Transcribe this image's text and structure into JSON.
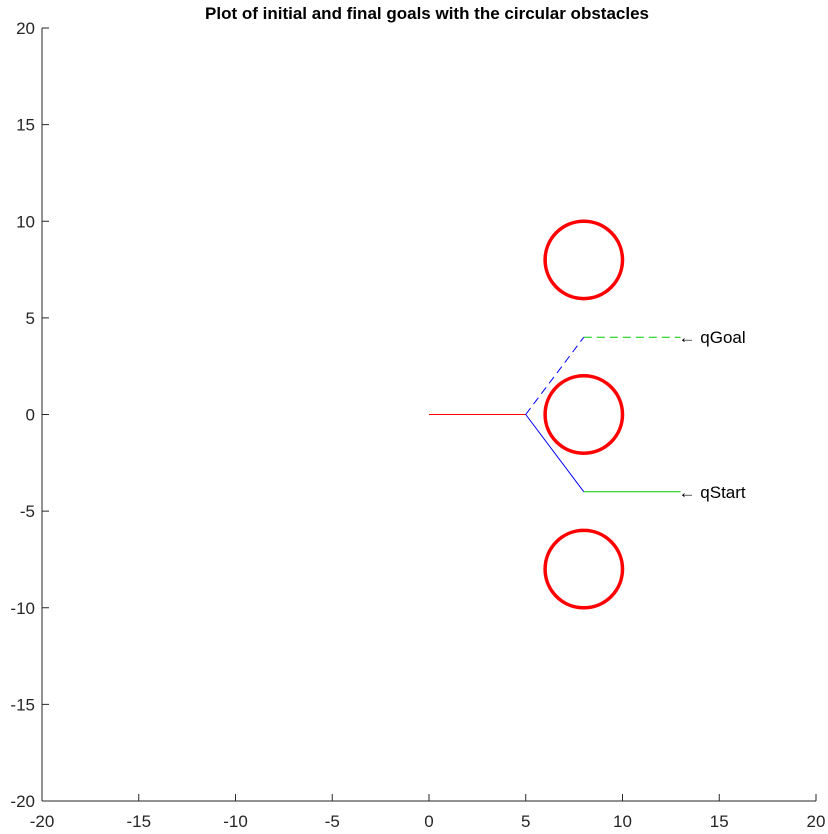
{
  "chart_data": {
    "type": "line",
    "title": "Plot of initial and final goals with the circular obstacles",
    "xlabel": "",
    "ylabel": "",
    "xlim": [
      -20,
      20
    ],
    "ylim": [
      -20,
      20
    ],
    "grid": false,
    "x_ticks": [
      -20,
      -15,
      -10,
      -5,
      0,
      5,
      10,
      15,
      20
    ],
    "y_ticks": [
      -20,
      -15,
      -10,
      -5,
      0,
      5,
      10,
      15,
      20
    ],
    "x_tick_labels": [
      "-20",
      "-15",
      "-10",
      "-5",
      "0",
      "5",
      "10",
      "15",
      "20"
    ],
    "y_tick_labels": [
      "-20",
      "-15",
      "-10",
      "-5",
      "0",
      "5",
      "10",
      "15",
      "20"
    ],
    "obstacles": [
      {
        "cx": 8,
        "cy": 8,
        "r": 2,
        "color": "#ff0000"
      },
      {
        "cx": 8,
        "cy": 0,
        "r": 2,
        "color": "#ff0000"
      },
      {
        "cx": 8,
        "cy": -8,
        "r": 2,
        "color": "#ff0000"
      }
    ],
    "series": [
      {
        "points": [
          [
            0,
            0
          ],
          [
            5,
            0
          ]
        ],
        "color": "#ff0000",
        "style": "solid"
      },
      {
        "points": [
          [
            5,
            0
          ],
          [
            8,
            -4
          ]
        ],
        "color": "#0000ff",
        "style": "solid"
      },
      {
        "points": [
          [
            8,
            -4
          ],
          [
            13,
            -4
          ]
        ],
        "color": "#00cc00",
        "style": "solid"
      },
      {
        "points": [
          [
            5,
            0
          ],
          [
            8,
            4
          ]
        ],
        "color": "#0000ff",
        "style": "dashed"
      },
      {
        "points": [
          [
            8,
            4
          ],
          [
            13,
            4
          ]
        ],
        "color": "#00cc00",
        "style": "dashed"
      }
    ],
    "annotations": [
      {
        "text": "← qGoal",
        "x": 13,
        "y": 4
      },
      {
        "text": "← qStart",
        "x": 13,
        "y": -4
      }
    ]
  }
}
